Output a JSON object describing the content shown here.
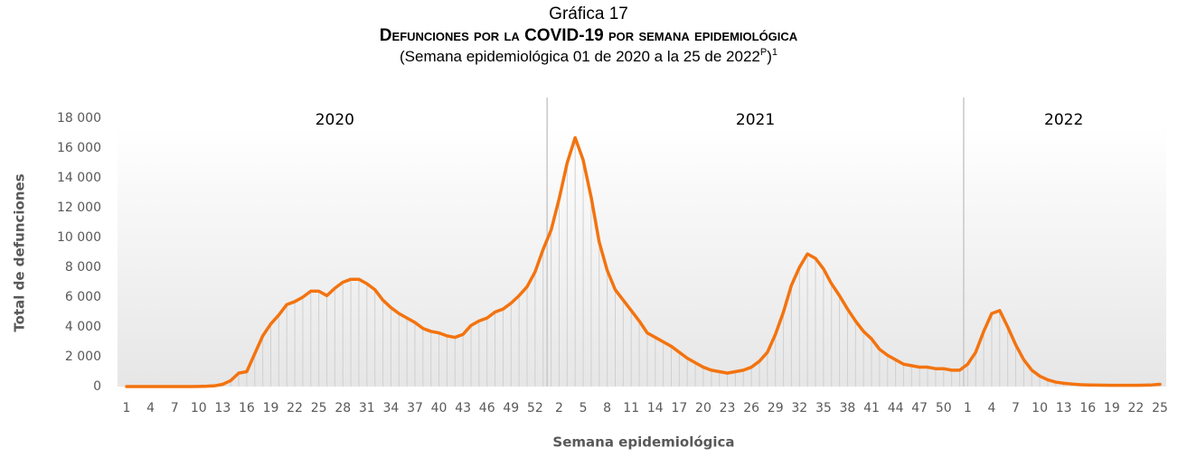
{
  "chart_data": {
    "type": "line",
    "title": "Gráfica 17",
    "subtitle_main": "Defunciones por la COVID-19 por semana epidemiológica",
    "subtitle": [
      "(Semana epidemiológica 01 de 2020 a la 25 de 2022",
      "P",
      ")",
      "1"
    ],
    "annotations": [
      "2020",
      "2021",
      "2022"
    ],
    "x_label": "Semana epidemiológica",
    "y_label": "Total de defunciones",
    "categories": [
      "1",
      null,
      null,
      "4",
      null,
      null,
      "7",
      null,
      null,
      "10",
      null,
      null,
      "13",
      null,
      null,
      "16",
      null,
      null,
      "19",
      null,
      null,
      "22",
      null,
      null,
      "25",
      null,
      null,
      "28",
      null,
      null,
      "31",
      null,
      null,
      "34",
      null,
      null,
      "37",
      null,
      null,
      "40",
      null,
      null,
      "43",
      null,
      null,
      "46",
      null,
      null,
      "49",
      null,
      null,
      "52",
      null,
      null,
      "2",
      null,
      null,
      "5",
      null,
      null,
      "8",
      null,
      null,
      "11",
      null,
      null,
      "14",
      null,
      null,
      "17",
      null,
      null,
      "20",
      null,
      null,
      "23",
      null,
      null,
      "26",
      null,
      null,
      "29",
      null,
      null,
      "32",
      null,
      null,
      "35",
      null,
      null,
      "38",
      null,
      null,
      "41",
      null,
      null,
      "44",
      null,
      null,
      "47",
      null,
      null,
      "50",
      null,
      null,
      "1",
      null,
      null,
      "4",
      null,
      null,
      "7",
      null,
      null,
      "10",
      null,
      null,
      "13",
      null,
      null,
      "16",
      null,
      null,
      "19",
      null,
      null,
      "22",
      null,
      null,
      "25"
    ],
    "series": [
      {
        "name": "Defunciones",
        "color": "#f3730f",
        "values": [
          0,
          0,
          0,
          0,
          0,
          0,
          0,
          0,
          0,
          5,
          20,
          50,
          150,
          400,
          900,
          1000,
          2200,
          3400,
          4200,
          4800,
          5500,
          5700,
          6000,
          6400,
          6400,
          6100,
          6600,
          7000,
          7200,
          7200,
          6900,
          6500,
          5800,
          5300,
          4900,
          4600,
          4300,
          3900,
          3700,
          3600,
          3400,
          3300,
          3500,
          4100,
          4400,
          4600,
          5000,
          5200,
          5600,
          6100,
          6700,
          7700,
          9200,
          10500,
          12600,
          15000,
          16700,
          15200,
          12700,
          9700,
          7800,
          6500,
          5800,
          5100,
          4400,
          3600,
          3300,
          3000,
          2700,
          2300,
          1900,
          1600,
          1300,
          1100,
          1000,
          900,
          1000,
          1100,
          1300,
          1700,
          2300,
          3500,
          5000,
          6800,
          8000,
          8900,
          8600,
          7900,
          6900,
          6100,
          5200,
          4400,
          3700,
          3200,
          2500,
          2100,
          1800,
          1500,
          1400,
          1300,
          1300,
          1200,
          1200,
          1100,
          1100,
          1500,
          2300,
          3700,
          4900,
          5100,
          4000,
          2800,
          1800,
          1100,
          700,
          450,
          300,
          220,
          170,
          130,
          110,
          100,
          90,
          80,
          80,
          80,
          80,
          90,
          110,
          150
        ]
      }
    ],
    "ylim": [
      0,
      18000
    ],
    "yticks": [
      0,
      {
        "value": 2000,
        "label": "2 000"
      },
      {
        "value": 4000,
        "label": "4 000"
      },
      {
        "value": 6000,
        "label": "6 000"
      },
      {
        "value": 8000,
        "label": "8 000"
      },
      {
        "value": 10000,
        "label": "10 000"
      },
      {
        "value": 12000,
        "label": "12 000"
      },
      {
        "value": 14000,
        "label": "14 000"
      },
      {
        "value": 16000,
        "label": "16 000"
      },
      {
        "value": 18000,
        "label": "18 000"
      }
    ],
    "drop_lines": true
  }
}
